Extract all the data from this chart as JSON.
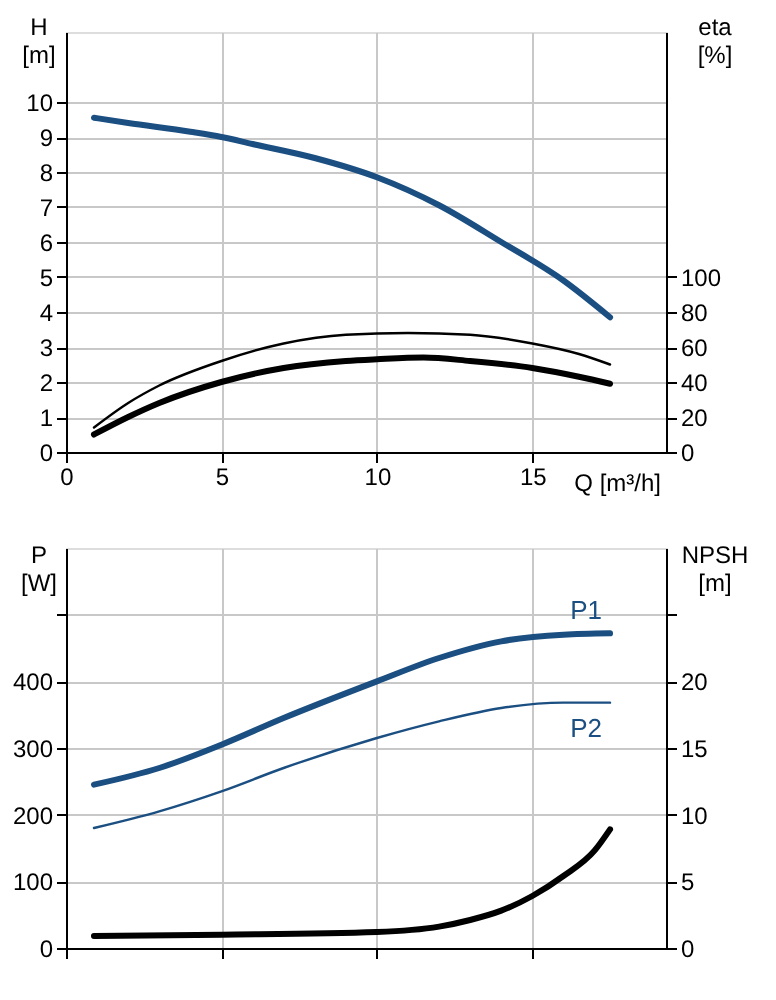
{
  "chart_data": [
    {
      "type": "line",
      "xlabel": "Q [m³/h]",
      "ylabel": "H [m]",
      "y2label": "eta [%]",
      "xlim": [
        0,
        19.3
      ],
      "xticks": [
        0,
        5,
        10,
        15
      ],
      "ylim": [
        0,
        12
      ],
      "yticks": [
        0,
        1,
        2,
        3,
        4,
        5,
        6,
        7,
        8,
        9,
        10
      ],
      "y2lim": [
        0,
        240
      ],
      "y2ticks": [
        0,
        20,
        40,
        60,
        80,
        100
      ],
      "grid": true,
      "marker": "none",
      "line_style": "solid",
      "series": [
        {
          "color": "#1b4f82",
          "x": [
            0.9,
            2,
            4,
            5,
            6,
            8,
            10,
            12,
            14,
            16,
            17.5
          ],
          "values": [
            9.55,
            9.4,
            9.15,
            9.0,
            8.8,
            8.4,
            7.85,
            7.05,
            6.0,
            4.9,
            3.85
          ]
        },
        {
          "color": "#000000",
          "axis": "y2",
          "x": [
            0.9,
            2,
            3,
            5,
            7,
            9,
            11,
            13,
            15,
            16.5,
            17.5
          ],
          "values": [
            14,
            28,
            38,
            52,
            62,
            67,
            68,
            67,
            62,
            56,
            50
          ]
        },
        {
          "color": "#000000",
          "axis": "y2",
          "x": [
            0.9,
            2,
            3,
            5,
            7,
            9,
            10,
            11.5,
            13,
            15,
            16.5,
            17.5
          ],
          "values": [
            10,
            20,
            28,
            40,
            48,
            52,
            53,
            54,
            52,
            48,
            43,
            39
          ]
        }
      ]
    },
    {
      "type": "line",
      "ylabel": "P [W]",
      "y2label": "NPSH [m]",
      "xlim": [
        0,
        19.3
      ],
      "xticks": [
        0,
        5,
        10,
        15
      ],
      "ylim": [
        0,
        600
      ],
      "yticks": [
        0,
        100,
        200,
        300,
        400,
        {
          "value": 500,
          "label": null
        }
      ],
      "y2lim": [
        0,
        30
      ],
      "y2ticks": [
        0,
        5,
        10,
        15,
        20,
        {
          "value": 25,
          "label": null
        }
      ],
      "grid": true,
      "marker": "none",
      "line_style": "solid",
      "tick_labels": "y",
      "series": [
        {
          "name": "P1",
          "color": "#1b4f82",
          "x": [
            0.9,
            3,
            5,
            7,
            10,
            12,
            14,
            16,
            17.5
          ],
          "values": [
            245,
            270,
            305,
            345,
            400,
            435,
            460,
            470,
            472
          ]
        },
        {
          "name": "P2",
          "color": "#1b4f82",
          "x": [
            0.9,
            3,
            5,
            7,
            10,
            12,
            14,
            16,
            17.5
          ],
          "values": [
            180,
            205,
            235,
            270,
            315,
            340,
            360,
            368,
            368
          ]
        },
        {
          "color": "#000000",
          "axis": "y2",
          "x": [
            0.9,
            5,
            10,
            12,
            13,
            14,
            15,
            16,
            17,
            17.5
          ],
          "values": [
            0.9,
            1.0,
            1.2,
            1.6,
            2.1,
            2.8,
            3.9,
            5.4,
            7.3,
            8.9
          ]
        }
      ]
    }
  ]
}
